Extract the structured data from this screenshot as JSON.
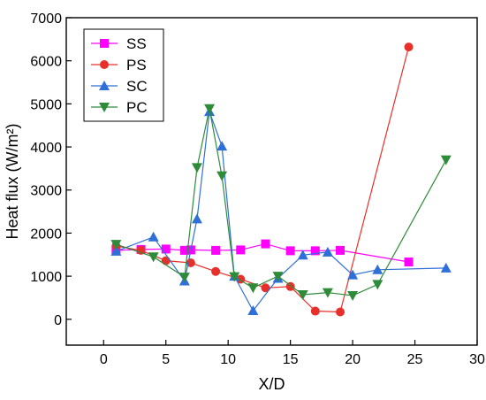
{
  "chart_data": {
    "type": "line",
    "xlabel": "X/D",
    "ylabel": "Heat flux (W/m²)",
    "xlim": [
      -3,
      30
    ],
    "ylim": [
      -600,
      7000
    ],
    "xticks": [
      0,
      5,
      10,
      15,
      20,
      25,
      30
    ],
    "yticks": [
      0,
      1000,
      2000,
      3000,
      4000,
      5000,
      6000,
      7000
    ],
    "grid": false,
    "legend_position": "top-left",
    "series": [
      {
        "name": "SS",
        "color": "#ff00ff",
        "marker": "square",
        "x": [
          1,
          3,
          5,
          6.5,
          7,
          9,
          11,
          13,
          15,
          17,
          19,
          24.5
        ],
        "y": [
          1600,
          1620,
          1630,
          1600,
          1610,
          1600,
          1610,
          1750,
          1590,
          1590,
          1600,
          1330
        ]
      },
      {
        "name": "PS",
        "color": "#e8302a",
        "marker": "circle",
        "x": [
          1,
          3,
          5,
          7,
          9,
          11,
          13,
          15,
          17,
          19,
          24.5
        ],
        "y": [
          1700,
          1600,
          1360,
          1310,
          1110,
          930,
          730,
          760,
          190,
          170,
          6320
        ]
      },
      {
        "name": "SC",
        "color": "#2f6fd8",
        "marker": "triangle-up",
        "x": [
          1,
          4,
          6.5,
          7.5,
          8.5,
          9.5,
          10.5,
          12,
          14,
          16,
          18,
          20,
          22,
          27.5
        ],
        "y": [
          1580,
          1910,
          890,
          2330,
          4820,
          4020,
          1000,
          200,
          950,
          1490,
          1560,
          1030,
          1150,
          1190
        ]
      },
      {
        "name": "PC",
        "color": "#2e8b3a",
        "marker": "triangle-down",
        "x": [
          1,
          4,
          6.5,
          7.5,
          8.5,
          9.5,
          10.5,
          12,
          14,
          16,
          18,
          20,
          22,
          27.5
        ],
        "y": [
          1740,
          1450,
          980,
          3520,
          4890,
          3330,
          990,
          730,
          1000,
          570,
          620,
          550,
          810,
          3700
        ]
      }
    ]
  }
}
